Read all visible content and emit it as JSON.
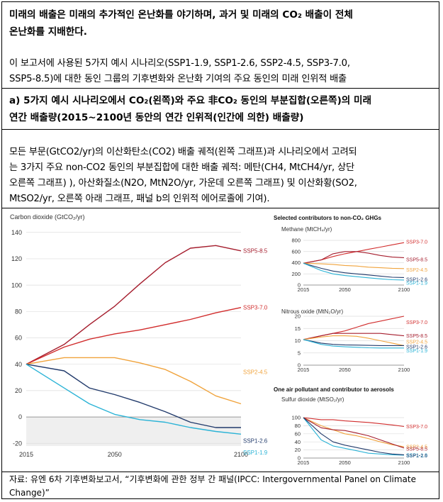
{
  "header": {
    "summary_line1": "미래의 배출은 미래의 추가적인 온난화를 야기하며, 과거 및 미래의 CO₂ 배출이 전체",
    "summary_line2": "온난화를 지배한다.",
    "intro_line1": "이 보고서에 사용된 5가지 예시 시나리오(SSP1-1.9, SSP1-2.6, SSP2-4.5, SSP3-7.0,",
    "intro_line2": "SSP5-8.5)에 대한 동인 그룹의 기후변화와 온난화 기여의 주요 동인의 미래 인위적 배출"
  },
  "panel_a": {
    "title_line1": "a) 5가지 예시 시나리오에서 CO₂(왼쪽)와 주요 非CO₂ 동인의 부분집합(오른쪽)의 미래",
    "title_line2": "연간 배출량(2015~2100년 동안의 연간 인위적(인간에 의한) 배출량)"
  },
  "description": {
    "line1": "모든 부문(GtCO2/yr)의 이산화탄소(CO2) 배출 궤적(왼쪽 그래프)과 시나리오에서 고려되",
    "line2": "는 3가지 주요 non-CO2 동인의 부분집합에 대한 배출 궤적: 메탄(CH4, MtCH4/yr, 상단",
    "line3": "오른쪽 그래프) ), 아산화질소(N2O, MtN2O/yr, 가운데 오른쪽 그래프) 및 이산화황(SO2,",
    "line4": "MtSO2/yr, 오른쪽 아래 그래프, 패널 b의 인위적 에어로졸에 기여)."
  },
  "source_note": {
    "line1": "자료: 유엔 6차 기후변화보고서, “기후변화에 관한 정부 간 패널(IPCC: Intergovernmental Panel on Climate",
    "line2": "Change)”"
  },
  "right_heading1": "Selected contributors to non-CO₂ GHGs",
  "right_heading2": "One air pollutant and contributor to aerosols",
  "scenario_colors": {
    "SSP5-8.5": "#a51d2d",
    "SSP3-7.0": "#d12c2c",
    "SSP2-4.5": "#f0a33c",
    "SSP1-2.6": "#213a6b",
    "SSP1-1.9": "#2bb3d6"
  },
  "chart_data": [
    {
      "type": "line",
      "title": "Carbon dioxide (GtCO₂/yr)",
      "x": [
        2015,
        2030,
        2040,
        2050,
        2060,
        2070,
        2080,
        2090,
        2100
      ],
      "xticks": [
        2015,
        2050,
        2100
      ],
      "yticks": [
        -20,
        0,
        20,
        40,
        60,
        80,
        100,
        120,
        140
      ],
      "ylim": [
        -22,
        142
      ],
      "series": [
        {
          "name": "SSP5-8.5",
          "values": [
            40,
            55,
            70,
            84,
            101,
            117,
            128,
            130,
            126
          ]
        },
        {
          "name": "SSP3-7.0",
          "values": [
            40,
            53,
            59,
            63,
            66,
            70,
            74,
            79,
            83
          ]
        },
        {
          "name": "SSP2-4.5",
          "values": [
            40,
            45,
            45,
            45,
            41,
            36,
            27,
            16,
            10
          ]
        },
        {
          "name": "SSP1-2.6",
          "values": [
            40,
            35,
            22,
            17,
            11,
            4,
            -4,
            -8,
            -8
          ]
        },
        {
          "name": "SSP1-1.9",
          "values": [
            40,
            22,
            10,
            2,
            -2,
            -4,
            -8,
            -11,
            -13
          ]
        }
      ]
    },
    {
      "type": "line",
      "title": "Methane (MtCH₄/yr)",
      "x": [
        2015,
        2030,
        2040,
        2050,
        2060,
        2070,
        2080,
        2090,
        2100
      ],
      "xticks": [
        2015,
        2050,
        2100
      ],
      "yticks": [
        0,
        200,
        400,
        600,
        800
      ],
      "ylim": [
        0,
        800
      ],
      "series": [
        {
          "name": "SSP3-7.0",
          "values": [
            390,
            450,
            510,
            560,
            600,
            640,
            680,
            720,
            760
          ]
        },
        {
          "name": "SSP5-8.5",
          "values": [
            390,
            450,
            560,
            600,
            600,
            570,
            530,
            500,
            490
          ]
        },
        {
          "name": "SSP2-4.5",
          "values": [
            390,
            380,
            370,
            350,
            340,
            320,
            310,
            300,
            295
          ]
        },
        {
          "name": "SSP1-2.6",
          "values": [
            390,
            300,
            250,
            220,
            200,
            180,
            160,
            140,
            135
          ]
        },
        {
          "name": "SSP1-1.9",
          "values": [
            390,
            260,
            200,
            170,
            150,
            130,
            110,
            95,
            90
          ]
        }
      ]
    },
    {
      "type": "line",
      "title": "Nitrous oxide (MtN₂O/yr)",
      "x": [
        2015,
        2030,
        2040,
        2050,
        2060,
        2070,
        2080,
        2090,
        2100
      ],
      "xticks": [
        2015,
        2050,
        2100
      ],
      "yticks": [
        0,
        5,
        10,
        15,
        20
      ],
      "ylim": [
        0,
        20
      ],
      "series": [
        {
          "name": "SSP3-7.0",
          "values": [
            10.5,
            12,
            13,
            14,
            15.5,
            17,
            18,
            19,
            20
          ]
        },
        {
          "name": "SSP5-8.5",
          "values": [
            10.5,
            12,
            13,
            13,
            13,
            13,
            13,
            12.5,
            12
          ]
        },
        {
          "name": "SSP2-4.5",
          "values": [
            10.5,
            11.5,
            12,
            12,
            11.8,
            11,
            10,
            9,
            8
          ]
        },
        {
          "name": "SSP1-2.6",
          "values": [
            10.5,
            9,
            8.5,
            8.3,
            8.2,
            8.1,
            8,
            8,
            8
          ]
        },
        {
          "name": "SSP1-1.9",
          "values": [
            10.5,
            8.5,
            7.8,
            7.5,
            7.3,
            7.1,
            7,
            7,
            7
          ]
        }
      ]
    },
    {
      "type": "line",
      "title": "Sulfur dioxide (MtSO₂/yr)",
      "x": [
        2015,
        2030,
        2040,
        2050,
        2060,
        2070,
        2080,
        2090,
        2100
      ],
      "xticks": [
        2015,
        2050,
        2100
      ],
      "yticks": [
        0,
        20,
        40,
        60,
        80,
        100
      ],
      "ylim": [
        0,
        100
      ],
      "series": [
        {
          "name": "SSP3-7.0",
          "values": [
            100,
            95,
            95,
            92,
            90,
            88,
            85,
            82,
            78
          ]
        },
        {
          "name": "SSP2-4.5",
          "values": [
            100,
            80,
            70,
            60,
            55,
            48,
            40,
            33,
            28
          ]
        },
        {
          "name": "SSP5-8.5",
          "values": [
            100,
            75,
            70,
            68,
            62,
            55,
            45,
            35,
            25
          ]
        },
        {
          "name": "SSP1-1.9",
          "values": [
            100,
            45,
            30,
            24,
            18,
            12,
            10,
            8,
            7
          ]
        },
        {
          "name": "SSP1-2.6",
          "values": [
            100,
            60,
            40,
            32,
            26,
            20,
            14,
            10,
            8
          ]
        }
      ]
    }
  ]
}
